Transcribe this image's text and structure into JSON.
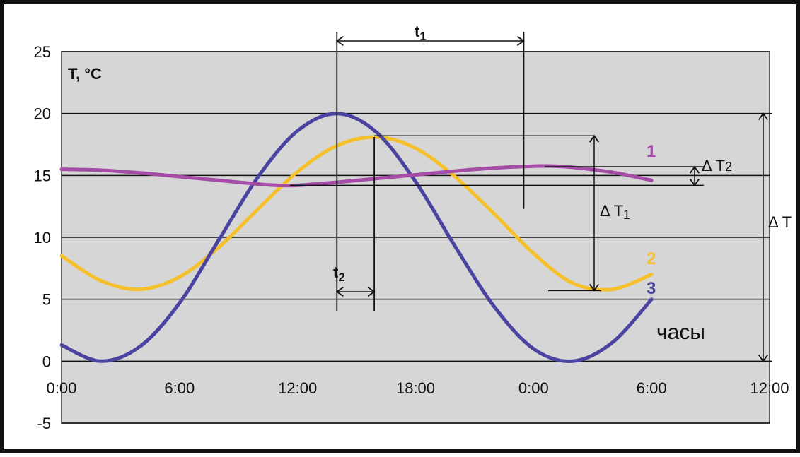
{
  "chart_data": {
    "type": "line",
    "ylabel": "T, °C",
    "xlabel": "часы",
    "ylim": [
      -5,
      25
    ],
    "xlim": [
      0,
      36
    ],
    "grid": true,
    "x_ticks": [
      {
        "value": 0,
        "label": "0:00"
      },
      {
        "value": 6,
        "label": "6:00"
      },
      {
        "value": 12,
        "label": "12:00"
      },
      {
        "value": 18,
        "label": "18:00"
      },
      {
        "value": 24,
        "label": "0:00"
      },
      {
        "value": 30,
        "label": "6:00"
      },
      {
        "value": 36,
        "label": "12:00"
      }
    ],
    "y_ticks": [
      {
        "value": 25,
        "label": "25"
      },
      {
        "value": 20,
        "label": "20"
      },
      {
        "value": 15,
        "label": "15"
      },
      {
        "value": 10,
        "label": "10"
      },
      {
        "value": 5,
        "label": "5"
      },
      {
        "value": 0,
        "label": "0"
      },
      {
        "value": -5,
        "label": "-5"
      }
    ],
    "series": [
      {
        "name": "1",
        "color": "#a44ca6",
        "x": [
          0,
          2,
          4,
          6,
          8,
          10,
          11,
          12,
          14,
          16,
          18,
          20,
          22,
          24,
          25,
          26,
          28,
          30
        ],
        "y": [
          15.5,
          15.42,
          15.2,
          14.9,
          14.6,
          14.3,
          14.2,
          14.2,
          14.45,
          14.75,
          15.05,
          15.35,
          15.6,
          15.75,
          15.75,
          15.65,
          15.25,
          14.6
        ]
      },
      {
        "name": "2",
        "color": "#f5c02a",
        "x": [
          0,
          2,
          4,
          6,
          8,
          10,
          12,
          14,
          16,
          18,
          20,
          22,
          24,
          26,
          28,
          30
        ],
        "y": [
          8.5,
          6.5,
          5.8,
          6.8,
          9.2,
          12.3,
          15.3,
          17.4,
          18.1,
          17.2,
          14.9,
          11.9,
          8.7,
          6.3,
          5.8,
          7.0
        ]
      },
      {
        "name": "3",
        "color": "#4a43a0",
        "x": [
          0,
          2,
          4,
          6,
          8,
          10,
          12,
          14,
          16,
          18,
          20,
          22,
          24,
          26,
          28,
          30
        ],
        "y": [
          1.3,
          0.0,
          1.2,
          4.7,
          9.8,
          14.9,
          18.6,
          20.0,
          18.5,
          14.5,
          9.3,
          4.4,
          1.0,
          0.0,
          1.5,
          5.0
        ]
      }
    ],
    "annotations": {
      "t1_label": "t",
      "t1_sub": "1",
      "t2_label": "t",
      "t2_sub": "2",
      "dT1_label": "Δ T",
      "dT1_sub": "1",
      "dT2_label": "Δ T",
      "dT2_sub": "2",
      "dT_label": "Δ T",
      "x_vline_t_peak3": 14,
      "x_vline_t_peak2": 15.9,
      "x_vline_t_peak1": 23.5,
      "t1_range": [
        14,
        23.5
      ],
      "t2_range": [
        14,
        15.9
      ],
      "dT1_range": [
        5.7,
        18.2
      ],
      "dT2_range": [
        14.2,
        15.7
      ],
      "dT_range": [
        0,
        20
      ]
    }
  }
}
